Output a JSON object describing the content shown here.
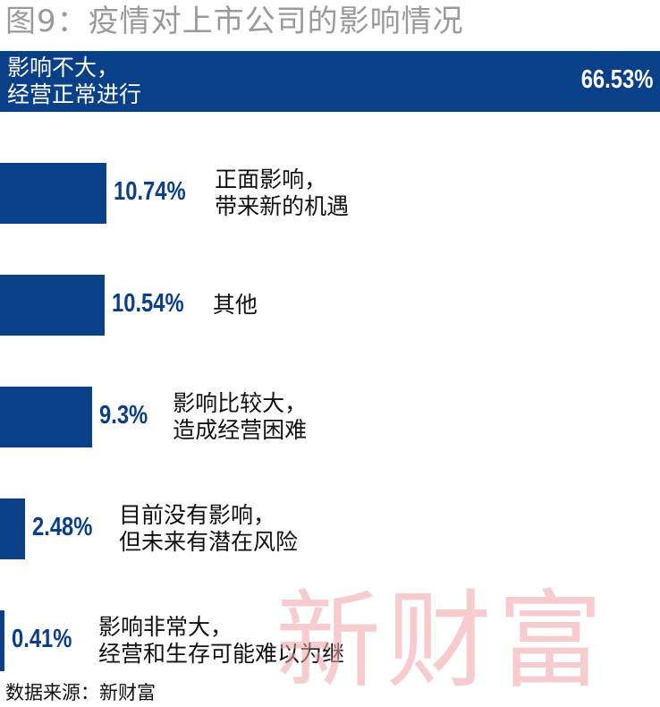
{
  "chart_data": {
    "type": "bar",
    "orientation": "horizontal",
    "title": "图9：疫情对上市公司的影响情况",
    "categories": [
      [
        "影响不大，",
        "经营正常进行"
      ],
      [
        "正面影响，",
        "带来新的机遇"
      ],
      [
        "其他"
      ],
      [
        "影响比较大，",
        "造成经营困难"
      ],
      [
        "目前没有影响，",
        "但未来有潜在风险"
      ],
      [
        "影响非常大，",
        "经营和生存可能难以为继"
      ]
    ],
    "values": [
      66.53,
      10.74,
      10.54,
      9.3,
      2.48,
      0.41
    ],
    "value_labels": [
      "66.53%",
      "10.74%",
      "10.54%",
      "9.3%",
      "2.48%",
      "0.41%"
    ],
    "xlim": [
      0,
      66.53
    ],
    "grid": false,
    "legend": "none",
    "bar_color": "#0a4087"
  },
  "watermark": "新财富",
  "source": "数据来源：新财富"
}
